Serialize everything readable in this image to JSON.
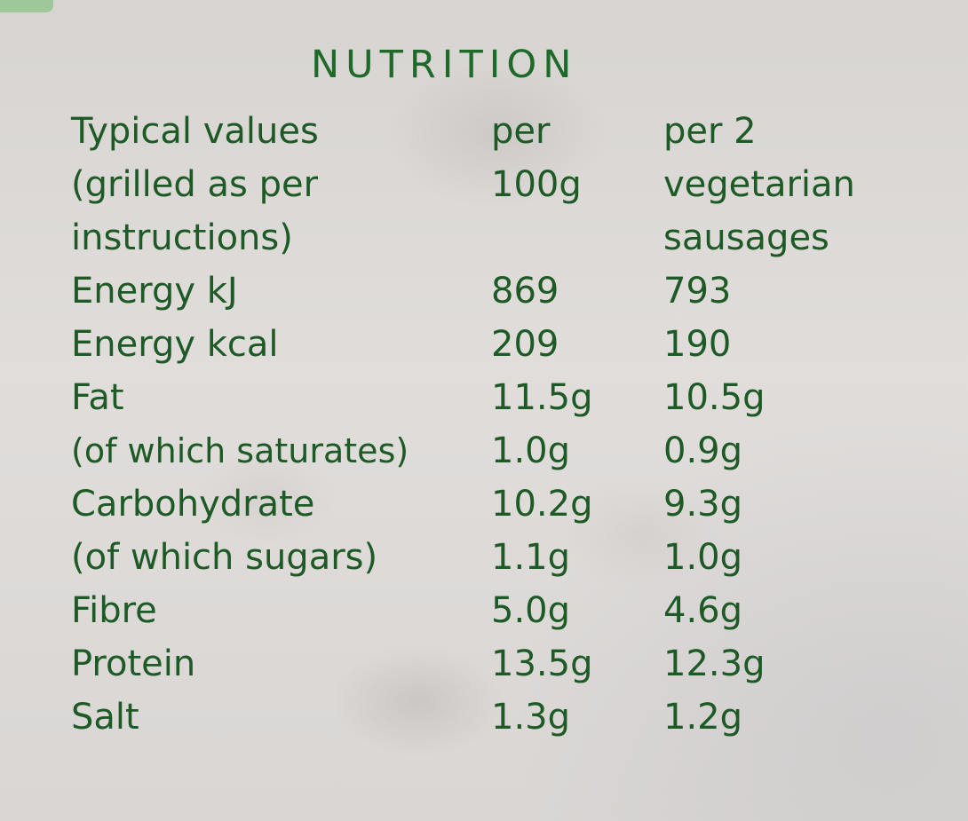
{
  "nutrition": {
    "title": "NUTRITION",
    "header": {
      "label_lines": [
        "Typical values",
        "(grilled as per",
        "instructions)"
      ],
      "per100_lines": [
        "per",
        "100g",
        ""
      ],
      "per2_lines": [
        "per 2",
        "vegetarian",
        "sausages"
      ]
    },
    "rows": [
      {
        "label": "Energy kJ",
        "per100": "869",
        "per2": "793"
      },
      {
        "label": "Energy kcal",
        "per100": "209",
        "per2": "190"
      },
      {
        "label": "Fat",
        "per100": "11.5g",
        "per2": "10.5g"
      },
      {
        "label": "(of which saturates)",
        "per100": "1.0g",
        "per2": "0.9g"
      },
      {
        "label": "Carbohydrate",
        "per100": "10.2g",
        "per2": "9.3g"
      },
      {
        "label": "(of which sugars)",
        "per100": "1.1g",
        "per2": "1.0g"
      },
      {
        "label": "Fibre",
        "per100": "5.0g",
        "per2": "4.6g"
      },
      {
        "label": "Protein",
        "per100": "13.5g",
        "per2": "12.3g"
      },
      {
        "label": "Salt",
        "per100": "1.3g",
        "per2": "1.2g"
      }
    ]
  }
}
